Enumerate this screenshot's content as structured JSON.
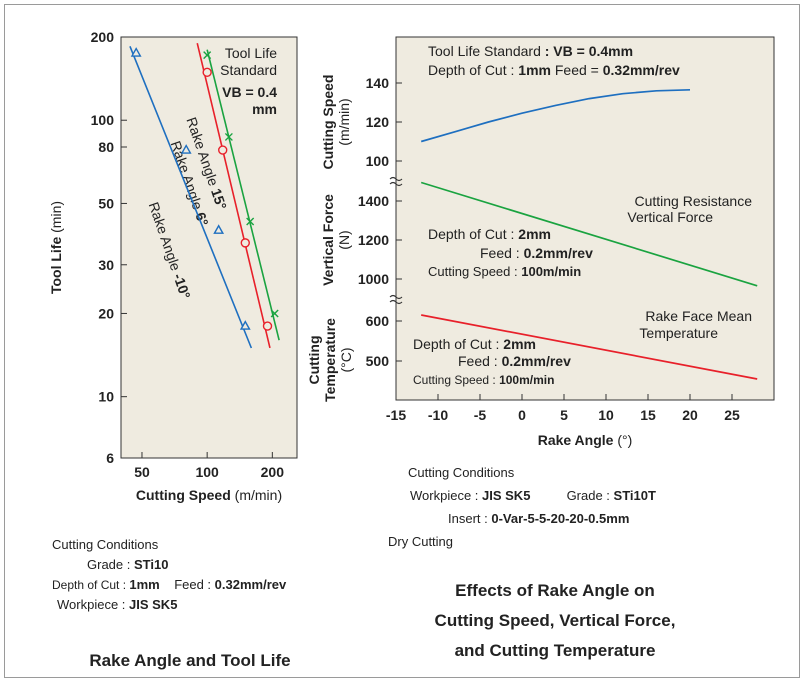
{
  "chart_data": [
    {
      "type": "line",
      "title": "Rake Angle and Tool Life",
      "xlabel": "Cutting Speed",
      "xlabel_unit": "(m/min)",
      "ylabel": "Tool Life",
      "ylabel_unit": "(min)",
      "x_scale": "log",
      "y_scale": "log",
      "xlim": [
        40,
        260
      ],
      "ylim": [
        6,
        200
      ],
      "x_ticks": [
        50,
        100,
        200
      ],
      "y_ticks": [
        6,
        10,
        20,
        30,
        50,
        80,
        100,
        200
      ],
      "annotation": {
        "line1": "Tool Life",
        "line2": "Standard",
        "line3": "VB = 0.4",
        "line4": "mm"
      },
      "series": [
        {
          "name": "Rake Angle 15°",
          "label_text": "Rake Angle ",
          "label_value": "15°",
          "color": "#1aa340",
          "marker": "x",
          "line": [
            [
              100,
              180
            ],
            [
              215,
              16
            ]
          ],
          "points": [
            [
              100,
              172
            ],
            [
              126,
              87
            ],
            [
              158,
              43
            ],
            [
              205,
              20
            ]
          ]
        },
        {
          "name": "Rake Angle 6°",
          "label_text": "Rake Angle ",
          "label_value": "6°",
          "color": "#e8202a",
          "marker": "o",
          "line": [
            [
              90,
              190
            ],
            [
              195,
              15
            ]
          ],
          "points": [
            [
              100,
              149
            ],
            [
              118,
              78
            ],
            [
              150,
              36
            ],
            [
              190,
              18
            ]
          ]
        },
        {
          "name": "Rake Angle -10°",
          "label_text": "Rake Angle ",
          "label_value": "-10°",
          "color": "#1e6fc0",
          "marker": "triangle",
          "line": [
            [
              44,
              185
            ],
            [
              160,
              15
            ]
          ],
          "points": [
            [
              47,
              175
            ],
            [
              80,
              78
            ],
            [
              113,
              40
            ],
            [
              150,
              18
            ]
          ]
        }
      ]
    },
    {
      "type": "line",
      "title": "Effects of Rake Angle on Cutting Speed, Vertical Force, and Cutting Temperature",
      "xlabel": "Rake Angle",
      "xlabel_unit": "(°)",
      "xlim": [
        -15,
        30
      ],
      "x_ticks": [
        -15,
        -10,
        -5,
        0,
        5,
        10,
        15,
        20,
        25
      ],
      "panels": [
        {
          "name": "cutting-speed",
          "ylabel": "Cutting Speed",
          "ylabel_unit": "(m/min)",
          "ylim": [
            90,
            150
          ],
          "y_ticks": [
            100,
            120,
            140
          ],
          "annotation": [
            {
              "text": "Tool Life Standard ",
              "bold": ": VB = 0.4mm"
            },
            {
              "text": "Depth of Cut : ",
              "bold": "1mm",
              "text2": "  Feed = ",
              "bold2": "0.32mm/rev"
            }
          ],
          "series": [
            {
              "name": "Cutting Speed",
              "color": "#1e6fc0",
              "x": [
                -12,
                -8,
                -4,
                0,
                4,
                8,
                12,
                16,
                20
              ],
              "y": [
                110,
                115,
                120,
                124.5,
                128.5,
                132,
                134.5,
                136,
                136.5
              ]
            }
          ]
        },
        {
          "name": "vertical-force",
          "ylabel": "Vertical Force",
          "ylabel_unit": "(N)",
          "ylim": [
            950,
            1550
          ],
          "y_ticks": [
            1000,
            1200,
            1400
          ],
          "label": [
            "Cutting Resistance",
            "Vertical Force"
          ],
          "annotation": [
            {
              "text": "Depth of Cut : ",
              "bold": "2mm"
            },
            {
              "text": "Feed : ",
              "bold": "0.2mm/rev"
            },
            {
              "text": "Cutting Speed : ",
              "bold": "100m/min"
            }
          ],
          "series": [
            {
              "name": "Cutting Resistance Vertical Force",
              "color": "#1aa340",
              "x": [
                -12,
                28
              ],
              "y": [
                1495,
                965
              ]
            }
          ]
        },
        {
          "name": "cutting-temperature",
          "ylabel": "Cutting Temperature",
          "ylabel_unit": "(°C)",
          "ylim": [
            440,
            660
          ],
          "y_ticks": [
            500,
            600
          ],
          "label": [
            "Rake Face Mean",
            "Temperature"
          ],
          "annotation": [
            {
              "text": "Depth of Cut : ",
              "bold": "2mm"
            },
            {
              "text": "Feed : ",
              "bold": "0.2mm/rev"
            },
            {
              "text": "Cutting Speed : ",
              "bold": "100m/min"
            }
          ],
          "series": [
            {
              "name": "Rake Face Mean Temperature",
              "color": "#e8202a",
              "x": [
                -12,
                28
              ],
              "y": [
                615,
                455
              ]
            }
          ]
        }
      ]
    }
  ],
  "left_conditions": {
    "heading": "Cutting Conditions",
    "grade_label": "Grade : ",
    "grade": "STi10",
    "doc_label": "Depth of Cut : ",
    "doc": "1mm",
    "feed_label": "Feed : ",
    "feed": "0.32mm/rev",
    "workpiece_label": "Workpiece : ",
    "workpiece": "JIS SK5"
  },
  "right_conditions": {
    "heading": "Cutting Conditions",
    "workpiece_label": "Workpiece : ",
    "workpiece": "JIS SK5",
    "grade_label": "Grade : ",
    "grade": "STi10T",
    "insert_label": "Insert : ",
    "insert": "0-Var-5-5-20-20-0.5mm",
    "dry": "Dry Cutting"
  },
  "titles": {
    "left": "Rake Angle and Tool Life",
    "right_line1": "Effects of Rake Angle on",
    "right_line2": "Cutting Speed, Vertical Force,",
    "right_line3": "and Cutting Temperature"
  },
  "colors": {
    "plot_bg": "#efebe0",
    "axis": "#333333"
  }
}
